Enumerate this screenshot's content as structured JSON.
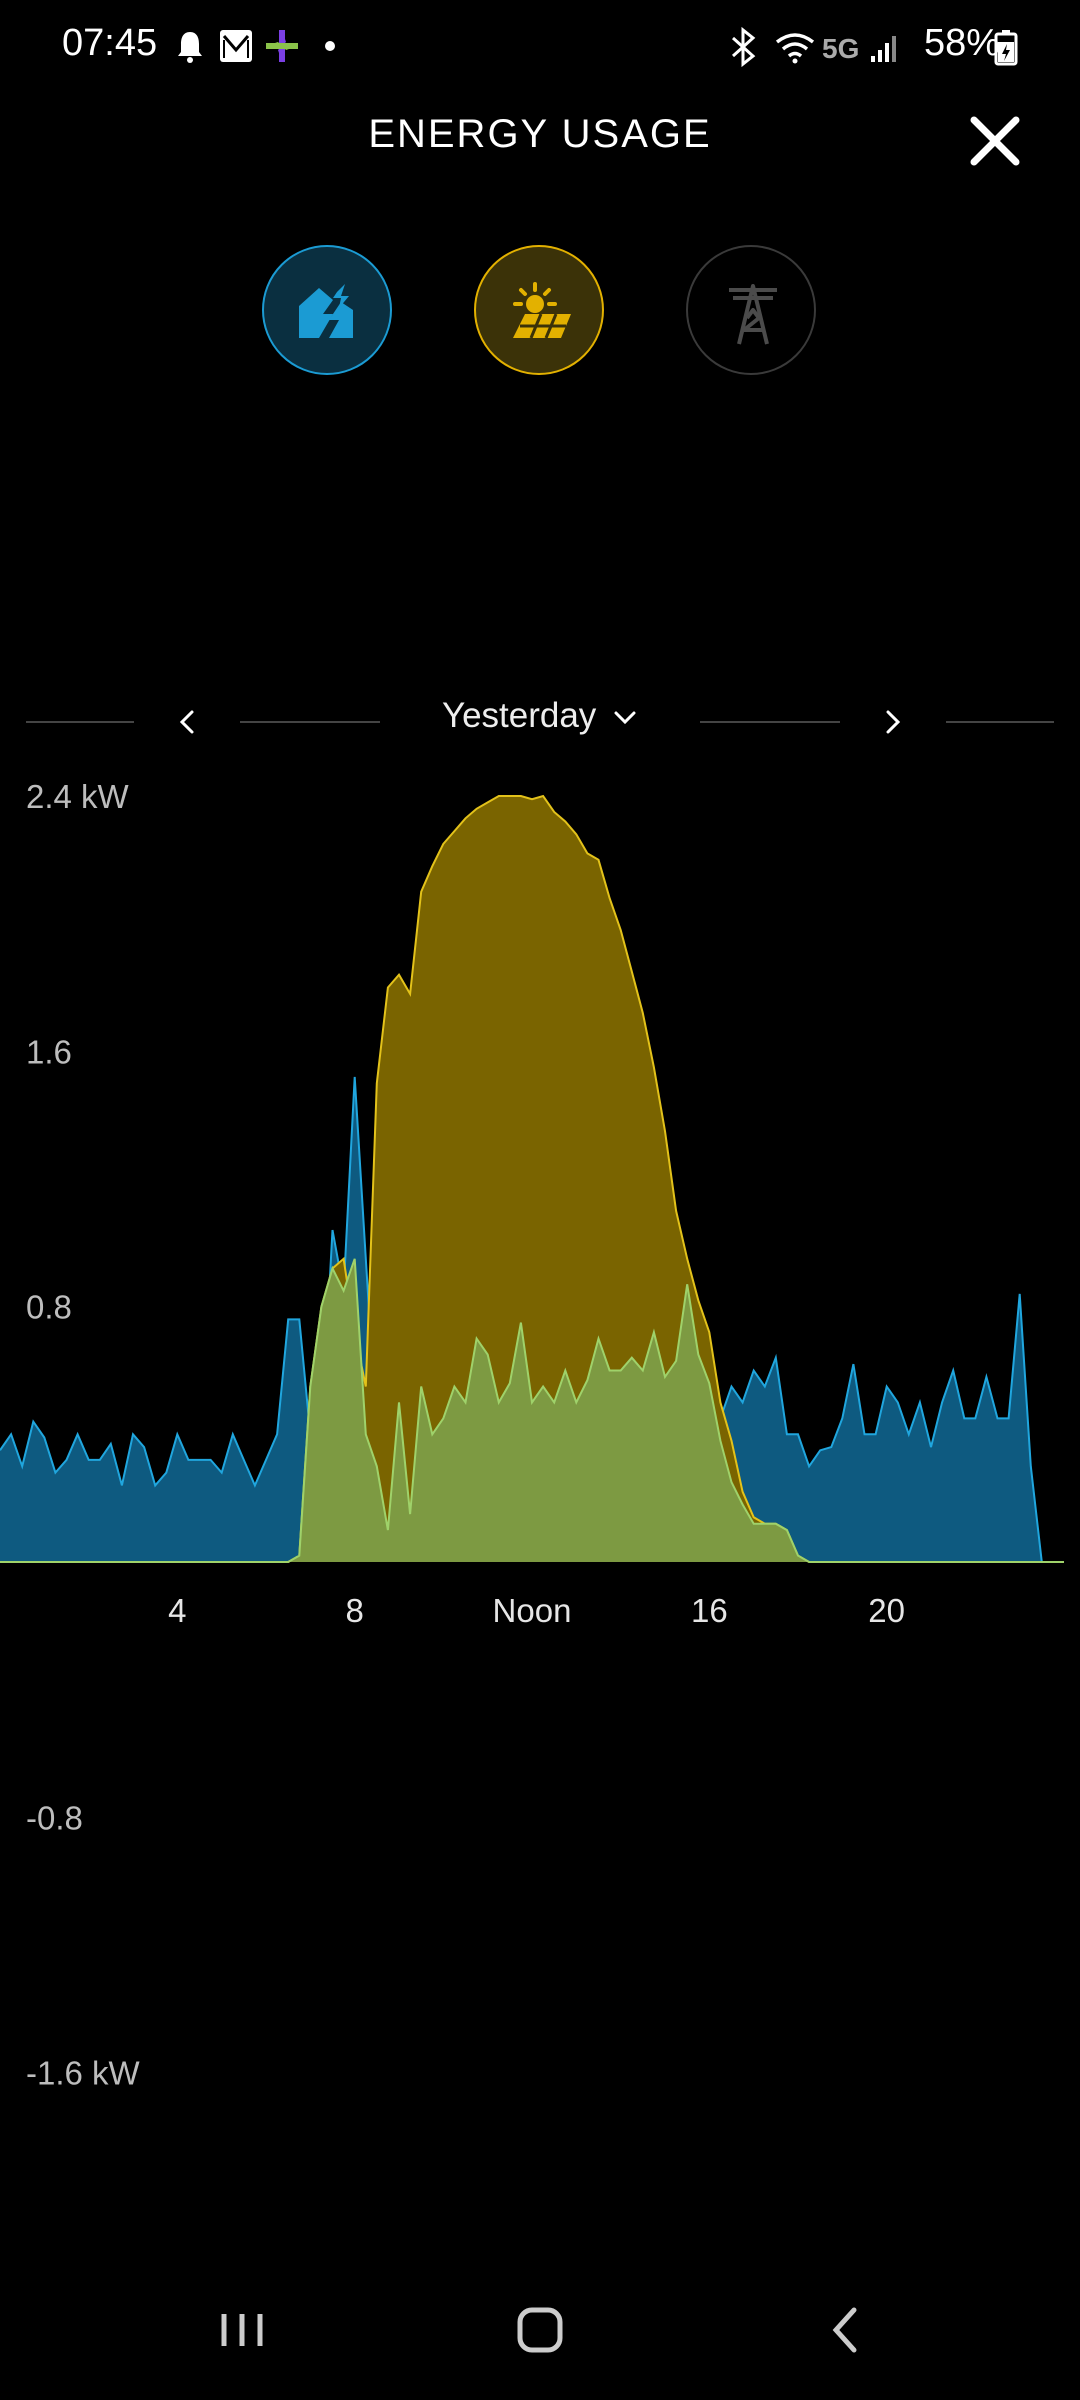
{
  "status_bar": {
    "time": "07:45",
    "network": "5G",
    "battery": "58%"
  },
  "header": {
    "title": "ENERGY USAGE"
  },
  "modes": [
    {
      "name": "home",
      "icon": "home-icon",
      "color": "#1b9bd3",
      "active": true
    },
    {
      "name": "solar",
      "icon": "solar-panel-icon",
      "color": "#e3b100",
      "active": true
    },
    {
      "name": "grid",
      "icon": "power-tower-icon",
      "color": "#555555",
      "active": false
    }
  ],
  "date_selector": {
    "label": "Yesterday"
  },
  "chart_data": {
    "type": "area",
    "y_tick_labels": [
      "2.4 kW",
      "1.6",
      "0.8",
      "-0.8",
      "-1.6 kW"
    ],
    "y_ticks": [
      2.4,
      1.6,
      0.8,
      -0.8,
      -1.6
    ],
    "ylim": [
      -2.0,
      2.4
    ],
    "xlim": [
      0,
      24
    ],
    "x_tick_labels": [
      "4",
      "8",
      "Noon",
      "16",
      "20"
    ],
    "x_ticks": [
      4,
      8,
      12,
      16,
      20
    ],
    "series": [
      {
        "color": "#0e5a80",
        "stroke": "#20a6de",
        "points": [
          [
            0,
            0.35
          ],
          [
            0.25,
            0.4
          ],
          [
            0.5,
            0.3
          ],
          [
            0.75,
            0.44
          ],
          [
            1,
            0.39
          ],
          [
            1.25,
            0.28
          ],
          [
            1.5,
            0.32
          ],
          [
            1.75,
            0.4
          ],
          [
            2,
            0.32
          ],
          [
            2.25,
            0.32
          ],
          [
            2.5,
            0.37
          ],
          [
            2.75,
            0.24
          ],
          [
            3,
            0.4
          ],
          [
            3.25,
            0.36
          ],
          [
            3.5,
            0.24
          ],
          [
            3.75,
            0.28
          ],
          [
            4,
            0.4
          ],
          [
            4.25,
            0.32
          ],
          [
            4.5,
            0.32
          ],
          [
            4.75,
            0.32
          ],
          [
            5,
            0.28
          ],
          [
            5.25,
            0.4
          ],
          [
            5.5,
            0.32
          ],
          [
            5.75,
            0.24
          ],
          [
            6,
            0.32
          ],
          [
            6.25,
            0.4
          ],
          [
            6.5,
            0.76
          ],
          [
            6.75,
            0.76
          ],
          [
            7,
            0.4
          ],
          [
            7.25,
            0.4
          ],
          [
            7.5,
            1.04
          ],
          [
            7.75,
            0.85
          ],
          [
            8,
            1.52
          ],
          [
            8.25,
            0.95
          ],
          [
            8.5,
            0.4
          ],
          [
            8.75,
            0.3
          ],
          [
            9,
            0.5
          ],
          [
            9.25,
            0.3
          ],
          [
            9.5,
            0.55
          ],
          [
            9.75,
            0.4
          ],
          [
            10,
            0.45
          ],
          [
            10.25,
            0.55
          ],
          [
            10.5,
            0.5
          ],
          [
            10.75,
            0.7
          ],
          [
            11,
            0.65
          ],
          [
            11.25,
            0.5
          ],
          [
            11.5,
            0.56
          ],
          [
            11.75,
            0.75
          ],
          [
            12,
            0.5
          ],
          [
            12.25,
            0.55
          ],
          [
            12.5,
            0.5
          ],
          [
            12.75,
            0.6
          ],
          [
            13,
            0.5
          ],
          [
            13.25,
            0.57
          ],
          [
            13.5,
            0.7
          ],
          [
            13.75,
            0.6
          ],
          [
            14,
            0.6
          ],
          [
            14.25,
            0.64
          ],
          [
            14.5,
            0.6
          ],
          [
            14.75,
            0.72
          ],
          [
            15,
            0.58
          ],
          [
            15.25,
            0.63
          ],
          [
            15.5,
            0.87
          ],
          [
            15.75,
            0.65
          ],
          [
            16,
            0.56
          ],
          [
            16.25,
            0.45
          ],
          [
            16.5,
            0.55
          ],
          [
            16.75,
            0.5
          ],
          [
            17,
            0.6
          ],
          [
            17.25,
            0.55
          ],
          [
            17.5,
            0.64
          ],
          [
            17.75,
            0.4
          ],
          [
            18,
            0.4
          ],
          [
            18.25,
            0.3
          ],
          [
            18.5,
            0.35
          ],
          [
            18.75,
            0.36
          ],
          [
            19,
            0.45
          ],
          [
            19.25,
            0.62
          ],
          [
            19.5,
            0.4
          ],
          [
            19.75,
            0.4
          ],
          [
            20,
            0.55
          ],
          [
            20.25,
            0.5
          ],
          [
            20.5,
            0.4
          ],
          [
            20.75,
            0.5
          ],
          [
            21,
            0.36
          ],
          [
            21.25,
            0.5
          ],
          [
            21.5,
            0.6
          ],
          [
            21.75,
            0.45
          ],
          [
            22,
            0.45
          ],
          [
            22.25,
            0.58
          ],
          [
            22.5,
            0.45
          ],
          [
            22.75,
            0.45
          ],
          [
            23,
            0.84
          ],
          [
            23.25,
            0.3
          ],
          [
            23.5,
            0.0
          ]
        ]
      },
      {
        "color": "#7a6400",
        "stroke": "#e3c21a",
        "points": [
          [
            0,
            0
          ],
          [
            6.5,
            0
          ],
          [
            6.75,
            0.02
          ],
          [
            7,
            0.55
          ],
          [
            7.25,
            0.8
          ],
          [
            7.5,
            0.92
          ],
          [
            7.75,
            0.95
          ],
          [
            8,
            0.72
          ],
          [
            8.25,
            0.55
          ],
          [
            8.5,
            1.5
          ],
          [
            8.75,
            1.8
          ],
          [
            9,
            1.84
          ],
          [
            9.25,
            1.78
          ],
          [
            9.5,
            2.1
          ],
          [
            9.75,
            2.18
          ],
          [
            10,
            2.25
          ],
          [
            10.25,
            2.29
          ],
          [
            10.5,
            2.33
          ],
          [
            10.75,
            2.36
          ],
          [
            11,
            2.38
          ],
          [
            11.25,
            2.4
          ],
          [
            11.5,
            2.4
          ],
          [
            11.75,
            2.4
          ],
          [
            12,
            2.39
          ],
          [
            12.25,
            2.4
          ],
          [
            12.5,
            2.35
          ],
          [
            12.75,
            2.32
          ],
          [
            13,
            2.28
          ],
          [
            13.25,
            2.22
          ],
          [
            13.5,
            2.2
          ],
          [
            13.75,
            2.08
          ],
          [
            14,
            1.98
          ],
          [
            14.25,
            1.85
          ],
          [
            14.5,
            1.72
          ],
          [
            14.75,
            1.55
          ],
          [
            15,
            1.35
          ],
          [
            15.25,
            1.1
          ],
          [
            15.5,
            0.95
          ],
          [
            15.75,
            0.82
          ],
          [
            16,
            0.72
          ],
          [
            16.25,
            0.5
          ],
          [
            16.5,
            0.38
          ],
          [
            16.75,
            0.22
          ],
          [
            17,
            0.14
          ],
          [
            17.25,
            0.12
          ],
          [
            17.5,
            0.12
          ],
          [
            17.75,
            0.1
          ],
          [
            18,
            0.02
          ],
          [
            18.25,
            0
          ],
          [
            24,
            0
          ]
        ]
      },
      {
        "color": "#7d9a42",
        "stroke": "#9fd26a",
        "points": [
          [
            0,
            0
          ],
          [
            6.5,
            0
          ],
          [
            6.75,
            0.02
          ],
          [
            7,
            0.55
          ],
          [
            7.25,
            0.8
          ],
          [
            7.5,
            0.92
          ],
          [
            7.75,
            0.85
          ],
          [
            8,
            0.95
          ],
          [
            8.25,
            0.4
          ],
          [
            8.5,
            0.3
          ],
          [
            8.75,
            0.1
          ],
          [
            9,
            0.5
          ],
          [
            9.25,
            0.15
          ],
          [
            9.5,
            0.55
          ],
          [
            9.75,
            0.4
          ],
          [
            10,
            0.45
          ],
          [
            10.25,
            0.55
          ],
          [
            10.5,
            0.5
          ],
          [
            10.75,
            0.7
          ],
          [
            11,
            0.65
          ],
          [
            11.25,
            0.5
          ],
          [
            11.5,
            0.56
          ],
          [
            11.75,
            0.75
          ],
          [
            12,
            0.5
          ],
          [
            12.25,
            0.55
          ],
          [
            12.5,
            0.5
          ],
          [
            12.75,
            0.6
          ],
          [
            13,
            0.5
          ],
          [
            13.25,
            0.57
          ],
          [
            13.5,
            0.7
          ],
          [
            13.75,
            0.6
          ],
          [
            14,
            0.6
          ],
          [
            14.25,
            0.64
          ],
          [
            14.5,
            0.6
          ],
          [
            14.75,
            0.72
          ],
          [
            15,
            0.58
          ],
          [
            15.25,
            0.63
          ],
          [
            15.5,
            0.87
          ],
          [
            15.75,
            0.65
          ],
          [
            16,
            0.56
          ],
          [
            16.25,
            0.38
          ],
          [
            16.5,
            0.25
          ],
          [
            16.75,
            0.18
          ],
          [
            17,
            0.12
          ],
          [
            17.25,
            0.12
          ],
          [
            17.5,
            0.12
          ],
          [
            17.75,
            0.1
          ],
          [
            18,
            0.02
          ],
          [
            18.25,
            0
          ],
          [
            24,
            0
          ]
        ]
      }
    ]
  },
  "bottom_nav": [
    {
      "icon": "recent-apps-icon"
    },
    {
      "icon": "home-circle-icon"
    },
    {
      "icon": "back-icon"
    }
  ]
}
